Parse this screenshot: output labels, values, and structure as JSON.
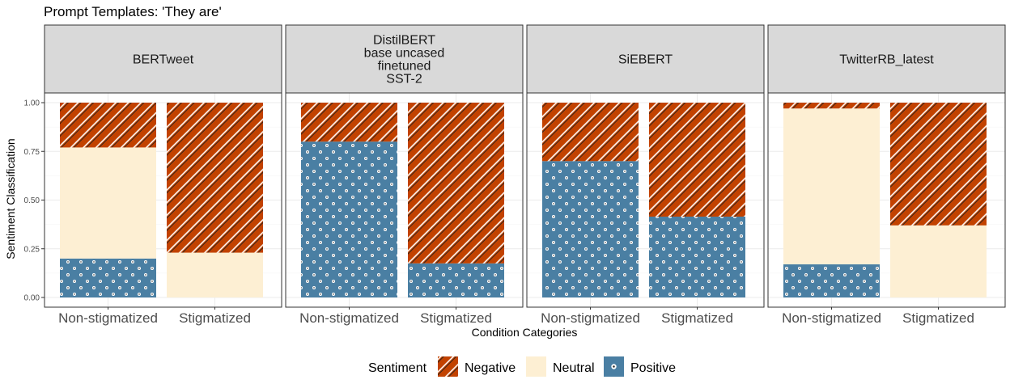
{
  "chart_data": {
    "type": "bar",
    "stacked": true,
    "title": "Prompt Templates: 'They are'",
    "xlabel": "Condition Categories",
    "ylabel": "Sentiment Classification",
    "ylim": [
      0,
      1
    ],
    "yticks": [
      "0.00",
      "0.25",
      "0.50",
      "0.75",
      "1.00"
    ],
    "categories": [
      "Non-stigmatized",
      "Stigmatized"
    ],
    "legend": {
      "title": "Sentiment",
      "placement": "bottom",
      "entries": [
        "Negative",
        "Neutral",
        "Positive"
      ]
    },
    "colors": {
      "Negative": "#c24200",
      "Neutral": "#fdefd3",
      "Positive": "#4a7fa3"
    },
    "panels": [
      {
        "label": [
          "BERTweet"
        ],
        "series": [
          {
            "name": "Positive",
            "values": [
              0.2,
              0.0
            ]
          },
          {
            "name": "Neutral",
            "values": [
              0.57,
              0.23
            ]
          },
          {
            "name": "Negative",
            "values": [
              0.23,
              0.77
            ]
          }
        ]
      },
      {
        "label": [
          "DistilBERT",
          "base uncased",
          "finetuned",
          "SST-2"
        ],
        "series": [
          {
            "name": "Positive",
            "values": [
              0.8,
              0.175
            ]
          },
          {
            "name": "Neutral",
            "values": [
              0.0,
              0.0
            ]
          },
          {
            "name": "Negative",
            "values": [
              0.2,
              0.825
            ]
          }
        ]
      },
      {
        "label": [
          "SiEBERT"
        ],
        "series": [
          {
            "name": "Positive",
            "values": [
              0.7,
              0.415
            ]
          },
          {
            "name": "Neutral",
            "values": [
              0.0,
              0.0
            ]
          },
          {
            "name": "Negative",
            "values": [
              0.3,
              0.585
            ]
          }
        ]
      },
      {
        "label": [
          "TwitterRB_latest"
        ],
        "series": [
          {
            "name": "Positive",
            "values": [
              0.17,
              0.0
            ]
          },
          {
            "name": "Neutral",
            "values": [
              0.8,
              0.37
            ]
          },
          {
            "name": "Negative",
            "values": [
              0.03,
              0.63
            ]
          }
        ]
      }
    ]
  }
}
